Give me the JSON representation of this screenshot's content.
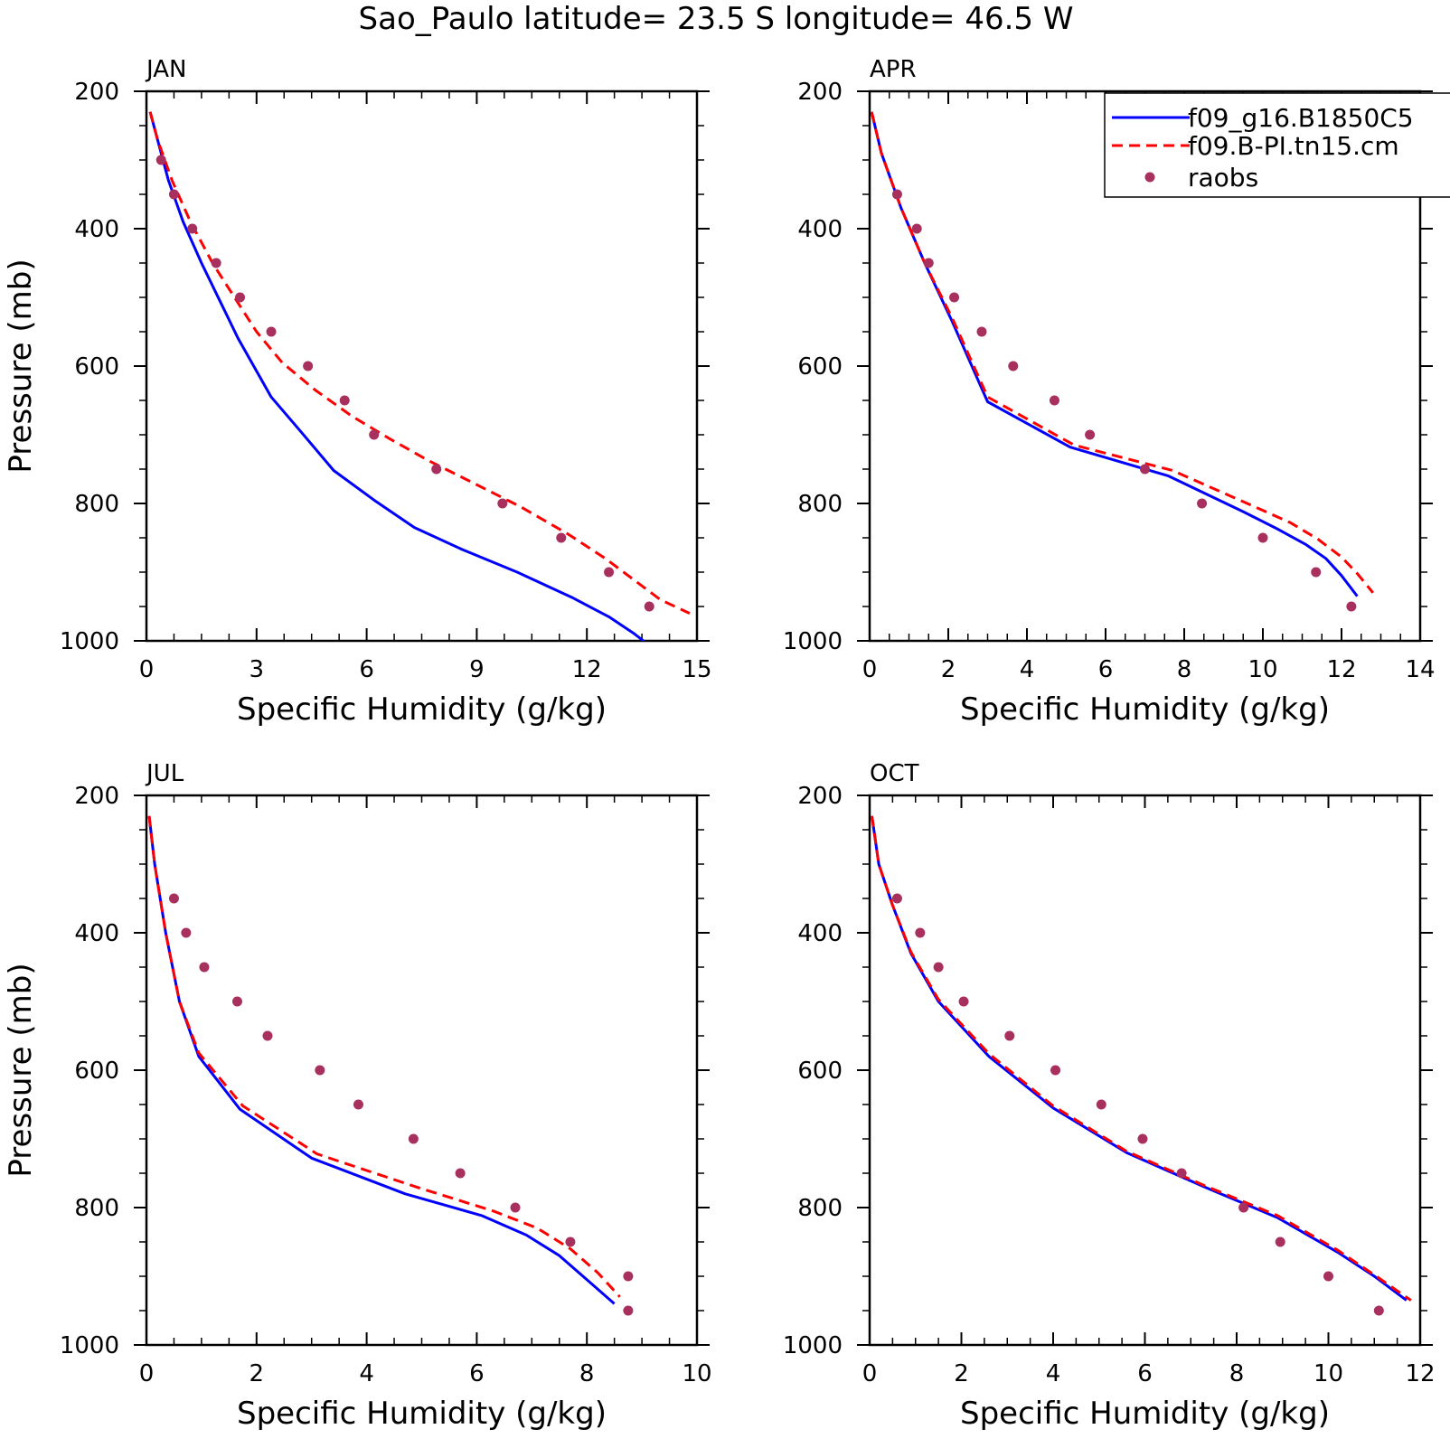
{
  "figure": {
    "title": "Sao_Paulo  latitude= 23.5 S longitude= 46.5 W",
    "colors": {
      "model1": "#0000ff",
      "model2": "#ff0000",
      "raobs": "#a8305e",
      "axes": "#000000"
    }
  },
  "legend": {
    "entries": [
      "f09_g16.B1850C5",
      "f09.B-PI.tn15.cm",
      "raobs"
    ]
  },
  "chart_data": [
    {
      "type": "line",
      "panel": "JAN",
      "xlabel": "Specific Humidity (g/kg)",
      "ylabel": "Pressure (mb)",
      "xlim": [
        0,
        15
      ],
      "ylim": [
        200,
        1000
      ],
      "y_inverted": true,
      "xticks": [
        0,
        3,
        6,
        9,
        12,
        15
      ],
      "yticks": [
        200,
        400,
        600,
        800,
        1000
      ],
      "grid": false,
      "series": [
        {
          "name": "f09_g16.B1850C5",
          "style": "solid",
          "x": [
            0.1,
            0.3,
            0.6,
            1.0,
            1.5,
            2.0,
            2.5,
            3.4,
            4.2,
            5.1,
            6.2,
            7.3,
            8.6,
            10.1,
            11.6,
            12.6,
            13.3,
            13.9,
            14.5
          ],
          "y": [
            230,
            270,
            330,
            390,
            450,
            505,
            560,
            645,
            695,
            752,
            795,
            835,
            867,
            900,
            937,
            965,
            990,
            1015,
            1030
          ]
        },
        {
          "name": "f09.B-PI.tn15.cm",
          "style": "dashed",
          "x": [
            0.1,
            0.3,
            0.7,
            1.2,
            1.8,
            2.4,
            3.0,
            3.7,
            4.6,
            5.6,
            6.6,
            7.7,
            8.9,
            10.2,
            11.5,
            12.5,
            13.3,
            14.0,
            14.8
          ],
          "y": [
            230,
            270,
            330,
            390,
            450,
            500,
            550,
            595,
            635,
            673,
            705,
            738,
            770,
            805,
            845,
            880,
            912,
            940,
            960
          ]
        },
        {
          "name": "raobs",
          "style": "markers",
          "x": [
            0.4,
            0.75,
            1.25,
            1.9,
            2.55,
            3.4,
            4.4,
            5.4,
            6.2,
            7.9,
            9.7,
            11.3,
            12.6,
            13.7
          ],
          "y": [
            300,
            350,
            400,
            450,
            500,
            550,
            600,
            650,
            700,
            750,
            800,
            850,
            900,
            950
          ]
        }
      ]
    },
    {
      "type": "line",
      "panel": "APR",
      "xlabel": "Specific Humidity (g/kg)",
      "ylabel": "",
      "xlim": [
        0,
        14
      ],
      "ylim": [
        200,
        1000
      ],
      "y_inverted": true,
      "xticks": [
        0,
        2,
        4,
        6,
        8,
        10,
        12,
        14
      ],
      "yticks": [
        200,
        400,
        600,
        800,
        1000
      ],
      "grid": false,
      "series": [
        {
          "name": "f09_g16.B1850C5",
          "style": "solid",
          "x": [
            0.05,
            0.3,
            0.8,
            1.4,
            2.1,
            3.0,
            5.1,
            7.6,
            9.5,
            10.4,
            11.1,
            11.6,
            12.0,
            12.4
          ],
          "y": [
            230,
            290,
            370,
            450,
            535,
            652,
            718,
            760,
            812,
            838,
            860,
            880,
            905,
            935
          ]
        },
        {
          "name": "f09.B-PI.tn15.cm",
          "style": "dashed",
          "x": [
            0.05,
            0.3,
            0.8,
            1.4,
            2.1,
            3.0,
            5.2,
            7.7,
            9.8,
            10.7,
            11.4,
            12.0,
            12.4,
            12.8
          ],
          "y": [
            230,
            290,
            370,
            450,
            530,
            645,
            715,
            752,
            805,
            828,
            852,
            878,
            902,
            930
          ]
        },
        {
          "name": "raobs",
          "style": "markers",
          "x": [
            0.7,
            1.2,
            1.5,
            2.15,
            2.85,
            3.65,
            4.7,
            5.6,
            7.0,
            8.45,
            10.0,
            11.35,
            12.25
          ],
          "y": [
            350,
            400,
            450,
            500,
            550,
            600,
            650,
            700,
            750,
            800,
            850,
            900,
            950
          ]
        }
      ]
    },
    {
      "type": "line",
      "panel": "JUL",
      "xlabel": "Specific Humidity (g/kg)",
      "ylabel": "Pressure (mb)",
      "xlim": [
        0,
        10
      ],
      "ylim": [
        200,
        1000
      ],
      "y_inverted": true,
      "xticks": [
        0,
        2,
        4,
        6,
        8,
        10
      ],
      "yticks": [
        200,
        400,
        600,
        800,
        1000
      ],
      "grid": false,
      "series": [
        {
          "name": "f09_g16.B1850C5",
          "style": "solid",
          "x": [
            0.05,
            0.15,
            0.35,
            0.6,
            0.95,
            1.7,
            3.0,
            4.7,
            6.1,
            6.9,
            7.5,
            8.0,
            8.5
          ],
          "y": [
            230,
            300,
            400,
            500,
            580,
            657,
            728,
            780,
            812,
            840,
            870,
            905,
            940
          ]
        },
        {
          "name": "f09.B-PI.tn15.cm",
          "style": "dashed",
          "x": [
            0.05,
            0.15,
            0.35,
            0.6,
            0.95,
            1.75,
            3.1,
            4.9,
            6.3,
            7.1,
            7.7,
            8.2,
            8.6
          ],
          "y": [
            230,
            300,
            400,
            500,
            575,
            652,
            722,
            770,
            805,
            830,
            860,
            895,
            930
          ]
        },
        {
          "name": "raobs",
          "style": "markers",
          "x": [
            0.5,
            0.72,
            1.05,
            1.65,
            2.2,
            3.15,
            3.85,
            4.85,
            5.7,
            6.7,
            7.7,
            8.75,
            8.75
          ],
          "y": [
            350,
            400,
            450,
            500,
            550,
            600,
            650,
            700,
            750,
            800,
            850,
            900,
            950
          ]
        }
      ]
    },
    {
      "type": "line",
      "panel": "OCT",
      "xlabel": "Specific Humidity (g/kg)",
      "ylabel": "",
      "xlim": [
        0,
        12
      ],
      "ylim": [
        200,
        1000
      ],
      "y_inverted": true,
      "xticks": [
        0,
        2,
        4,
        6,
        8,
        10,
        12
      ],
      "yticks": [
        200,
        400,
        600,
        800,
        1000
      ],
      "grid": false,
      "series": [
        {
          "name": "f09_g16.B1850C5",
          "style": "solid",
          "x": [
            0.05,
            0.2,
            0.5,
            0.9,
            1.5,
            2.6,
            4.0,
            5.6,
            7.3,
            8.9,
            10.2,
            11.0,
            11.7
          ],
          "y": [
            230,
            300,
            360,
            430,
            500,
            580,
            655,
            720,
            770,
            815,
            865,
            900,
            935
          ]
        },
        {
          "name": "f09.B-PI.tn15.cm",
          "style": "dashed",
          "x": [
            0.05,
            0.2,
            0.5,
            0.9,
            1.5,
            2.6,
            4.0,
            5.6,
            7.3,
            8.9,
            10.2,
            11.0,
            11.8
          ],
          "y": [
            230,
            300,
            360,
            428,
            497,
            576,
            652,
            718,
            768,
            812,
            862,
            898,
            935
          ]
        },
        {
          "name": "raobs",
          "style": "markers",
          "x": [
            0.6,
            1.1,
            1.5,
            2.05,
            3.05,
            4.05,
            5.05,
            5.95,
            6.8,
            8.15,
            8.95,
            10.0,
            11.1
          ],
          "y": [
            350,
            400,
            450,
            500,
            550,
            600,
            650,
            700,
            750,
            800,
            850,
            900,
            950
          ]
        }
      ]
    }
  ]
}
